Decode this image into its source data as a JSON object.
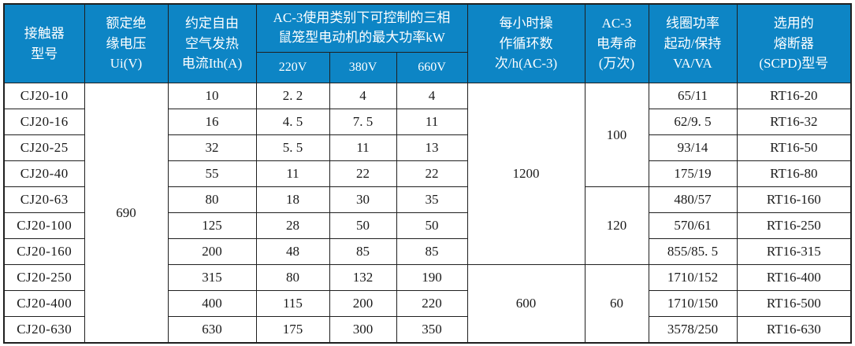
{
  "colors": {
    "header_bg": "#0d85c5",
    "header_text": "#ffffff",
    "grid_line": "#1f1f1f",
    "body_text": "#1a1a1a",
    "body_bg": "#ffffff"
  },
  "table": {
    "header": {
      "model": [
        "接触器",
        "型号"
      ],
      "ui": [
        "额定绝",
        "缘电压",
        "Ui(V)"
      ],
      "ith": [
        "约定自由",
        "空气发热",
        "电流Ith(A)"
      ],
      "power_group": [
        "AC-3使用类别下可控制的三相",
        "鼠笼型电动机的最大功率kW"
      ],
      "power_subs": [
        "220V",
        "380V",
        "660V"
      ],
      "cycles": [
        "每小时操",
        "作循环数",
        "次/h(AC-3)"
      ],
      "life": [
        "AC-3",
        "电寿命",
        "(万次)"
      ],
      "coil": [
        "线圈功率",
        "起动/保持",
        "VA/VA"
      ],
      "fuse": [
        "选用的",
        "熔断器",
        "(SCPD)型号"
      ]
    },
    "rows": [
      {
        "model": "CJ20-10",
        "ith": "10",
        "p220": "2. 2",
        "p380": "4",
        "p660": "4",
        "coil": "65/11",
        "fuse": "RT16-20"
      },
      {
        "model": "CJ20-16",
        "ith": "16",
        "p220": "4. 5",
        "p380": "7. 5",
        "p660": "11",
        "coil": "62/9. 5",
        "fuse": "RT16-32"
      },
      {
        "model": "CJ20-25",
        "ith": "32",
        "p220": "5. 5",
        "p380": "11",
        "p660": "13",
        "coil": "93/14",
        "fuse": "RT16-50"
      },
      {
        "model": "CJ20-40",
        "ith": "55",
        "p220": "11",
        "p380": "22",
        "p660": "22",
        "coil": "175/19",
        "fuse": "RT16-80"
      },
      {
        "model": "CJ20-63",
        "ith": "80",
        "p220": "18",
        "p380": "30",
        "p660": "35",
        "coil": "480/57",
        "fuse": "RT16-160"
      },
      {
        "model": "CJ20-100",
        "ith": "125",
        "p220": "28",
        "p380": "50",
        "p660": "50",
        "coil": "570/61",
        "fuse": "RT16-250"
      },
      {
        "model": "CJ20-160",
        "ith": "200",
        "p220": "48",
        "p380": "85",
        "p660": "85",
        "coil": "855/85. 5",
        "fuse": "RT16-315"
      },
      {
        "model": "CJ20-250",
        "ith": "315",
        "p220": "80",
        "p380": "132",
        "p660": "190",
        "coil": "1710/152",
        "fuse": "RT16-400"
      },
      {
        "model": "CJ20-400",
        "ith": "400",
        "p220": "115",
        "p380": "200",
        "p660": "220",
        "coil": "1710/150",
        "fuse": "RT16-500"
      },
      {
        "model": "CJ20-630",
        "ith": "630",
        "p220": "175",
        "p380": "300",
        "p660": "350",
        "coil": "3578/250",
        "fuse": "RT16-630"
      }
    ],
    "merges": {
      "ui": [
        {
          "value": "690",
          "start": 0,
          "span": 10
        }
      ],
      "cycles": [
        {
          "value": "1200",
          "start": 0,
          "span": 7
        },
        {
          "value": "600",
          "start": 7,
          "span": 3
        }
      ],
      "life": [
        {
          "value": "100",
          "start": 0,
          "span": 4
        },
        {
          "value": "120",
          "start": 4,
          "span": 3
        },
        {
          "value": "60",
          "start": 7,
          "span": 3
        }
      ]
    }
  }
}
